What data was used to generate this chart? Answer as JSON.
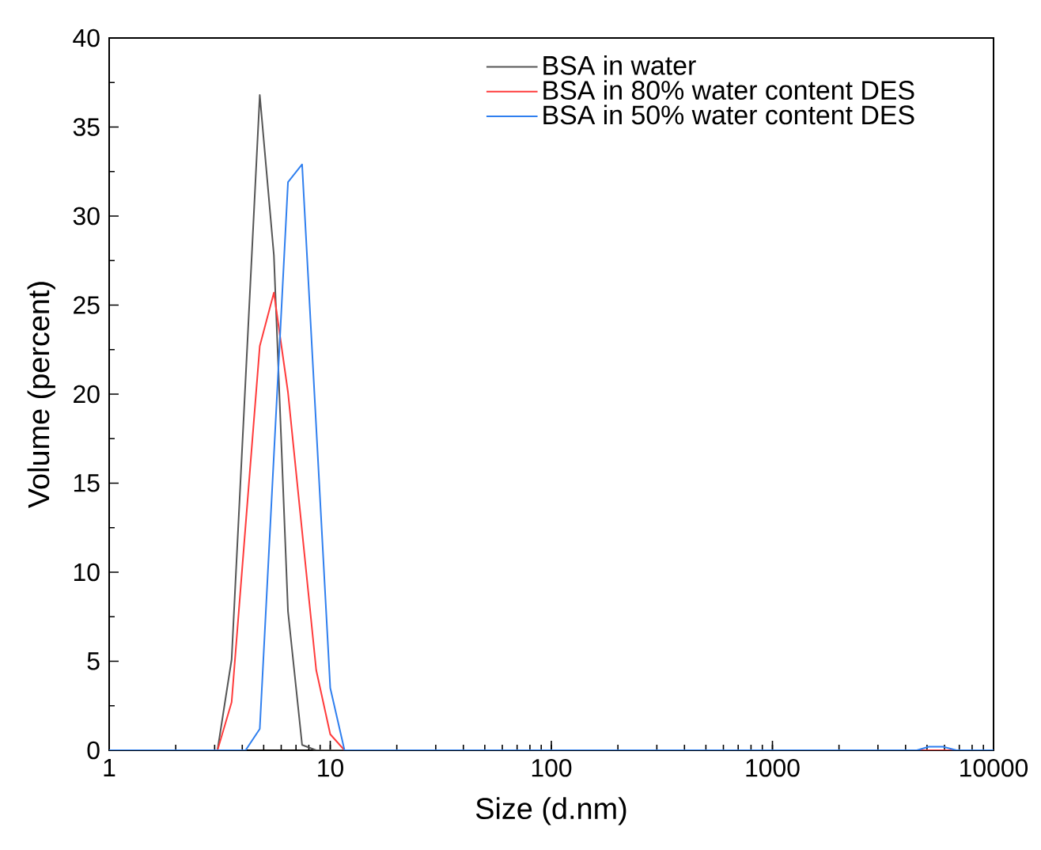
{
  "chart_data": {
    "type": "line",
    "xlabel": "Size (d.nm)",
    "ylabel": "Volume (percent)",
    "log": "x",
    "xlim": [
      1,
      10000
    ],
    "ylim": [
      0,
      40
    ],
    "xticks": [
      1,
      10,
      100,
      1000,
      10000
    ],
    "yticks": [
      0,
      5,
      10,
      15,
      20,
      25,
      30,
      35,
      40
    ],
    "legend": "top right",
    "grid": false,
    "marker": "none",
    "line_style": "solid",
    "series": [
      {
        "name": "BSA in water",
        "color": "#555555",
        "x": [
          1,
          3.09,
          3.58,
          4.8,
          5.56,
          6.44,
          7.46,
          8.64,
          100,
          1000,
          10000
        ],
        "values": [
          0,
          0,
          5.1,
          36.8,
          27.8,
          7.8,
          0.3,
          0,
          0,
          0,
          0
        ]
      },
      {
        "name": "BSA in 80% water content DES",
        "color": "#ff3b3b",
        "x": [
          1,
          3.09,
          3.58,
          4.8,
          5.56,
          6.44,
          8.64,
          10,
          11.6,
          100,
          1000,
          10000
        ],
        "values": [
          0,
          0,
          2.7,
          22.7,
          25.7,
          20.1,
          4.5,
          0.9,
          0,
          0,
          0,
          0
        ]
      },
      {
        "name": "BSA in 50% water content DES",
        "color": "#2f7fef",
        "x": [
          1,
          4.14,
          4.8,
          6.44,
          7.46,
          10,
          11.6,
          100,
          1000,
          4500,
          5100,
          5900,
          6800,
          10000
        ],
        "values": [
          0,
          0,
          1.2,
          31.9,
          32.9,
          3.5,
          0,
          0,
          0,
          0,
          0.2,
          0.2,
          0,
          0
        ]
      }
    ]
  }
}
